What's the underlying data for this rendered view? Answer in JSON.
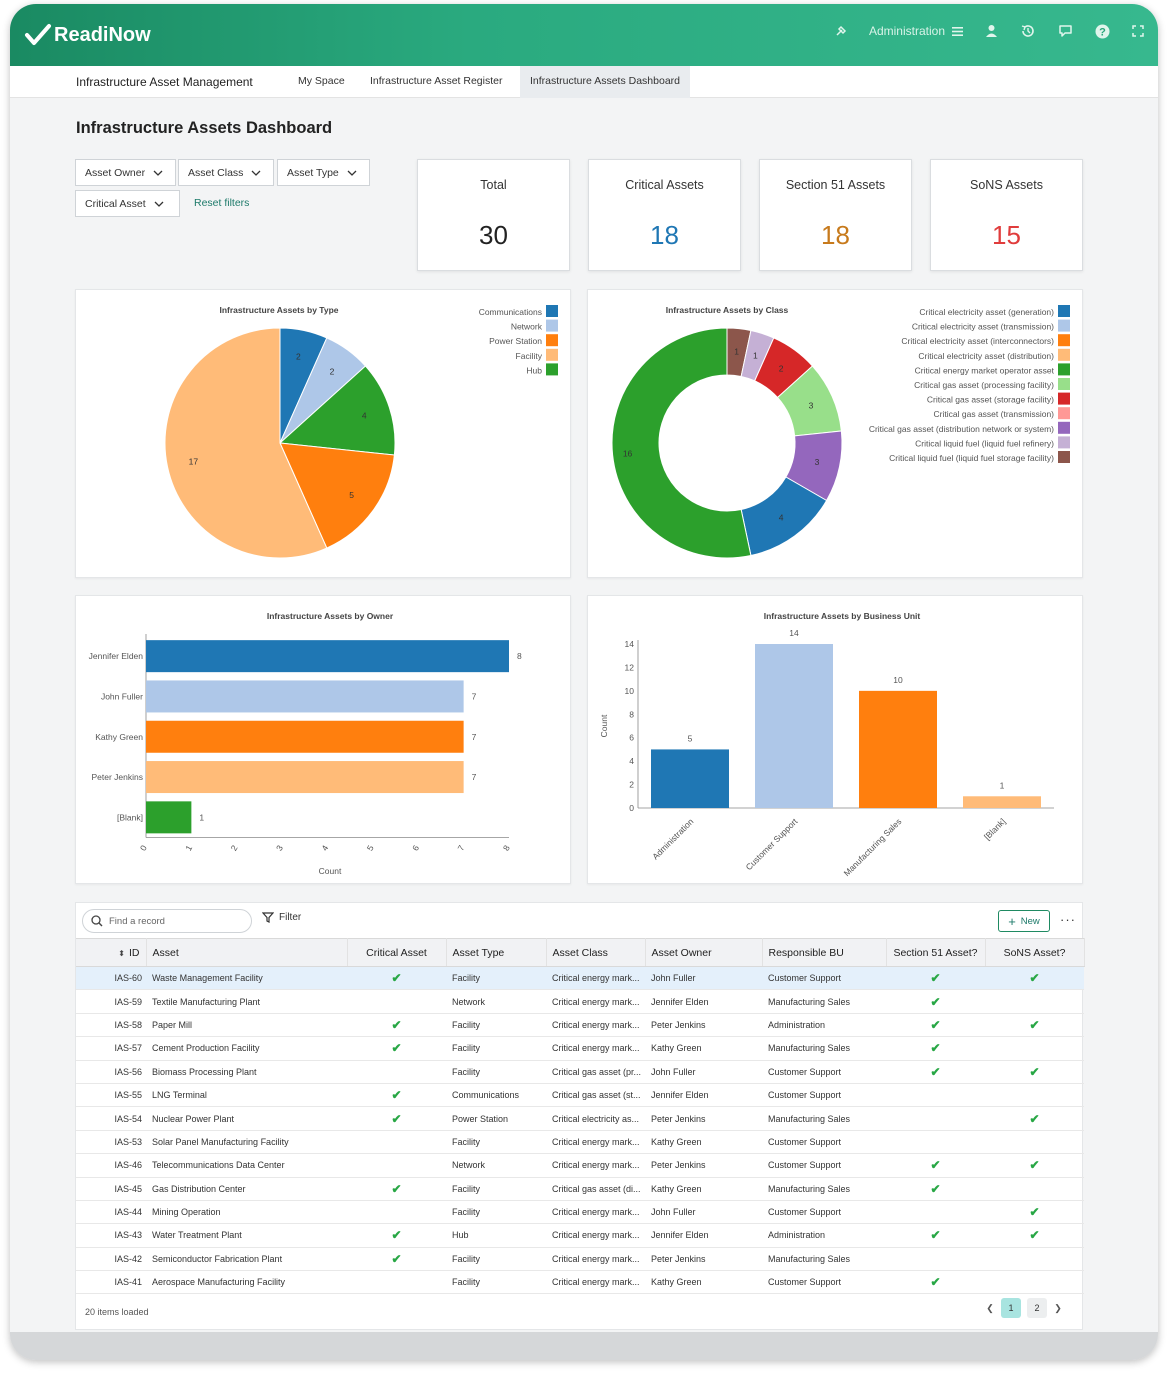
{
  "app": {
    "brand": "ReadiNow",
    "admin_label": "Administration"
  },
  "nav": {
    "app_name": "Infrastructure Asset Management",
    "tabs": [
      {
        "label": "My Space"
      },
      {
        "label": "Infrastructure Asset Register"
      },
      {
        "label": "Infrastructure Assets Dashboard",
        "active": true
      }
    ]
  },
  "page": {
    "title": "Infrastructure Assets Dashboard"
  },
  "filters": {
    "asset_owner": "Asset Owner",
    "asset_class": "Asset Class",
    "asset_type": "Asset Type",
    "critical_asset": "Critical Asset",
    "reset": "Reset filters"
  },
  "stats": [
    {
      "label": "Total",
      "value": "30",
      "color": "#222222"
    },
    {
      "label": "Critical Assets",
      "value": "18",
      "color": "#1f77b4"
    },
    {
      "label": "Section 51 Assets",
      "value": "18",
      "color": "#c77a1c"
    },
    {
      "label": "SoNS Assets",
      "value": "15",
      "color": "#e03c3c"
    }
  ],
  "chart_data": [
    {
      "type": "pie",
      "title": "Infrastructure Assets by Type",
      "categories": [
        "Communications",
        "Network",
        "Power Station",
        "Facility",
        "Hub"
      ],
      "values": [
        2,
        2,
        5,
        17,
        4
      ],
      "colors": [
        "#1f77b4",
        "#aec7e8",
        "#ff7f0e",
        "#ffbb78",
        "#2ca02c"
      ],
      "slice_order": [
        "Communications",
        "Network",
        "Hub",
        "Power Station",
        "Facility"
      ],
      "legend": "top-right"
    },
    {
      "type": "pie",
      "subtype": "donut",
      "title": "Infrastructure Assets by Class",
      "categories": [
        "Critical electricity asset (generation)",
        "Critical electricity asset (transmission)",
        "Critical electricity asset (interconnectors)",
        "Critical electricity asset (distribution)",
        "Critical energy market operator asset",
        "Critical gas asset (processing facility)",
        "Critical gas asset (storage facility)",
        "Critical gas asset (transmission)",
        "Critical gas asset (distribution network or system)",
        "Critical liquid fuel (liquid fuel refinery)",
        "Critical liquid fuel (liquid fuel storage facility)"
      ],
      "values": [
        4,
        0,
        0,
        0,
        16,
        3,
        2,
        0,
        3,
        1,
        1
      ],
      "colors": [
        "#1f77b4",
        "#aec7e8",
        "#ff7f0e",
        "#ffbb78",
        "#2ca02c",
        "#98df8a",
        "#d62728",
        "#ff9896",
        "#9467bd",
        "#c5b0d5",
        "#8c564b"
      ],
      "slice_order": [
        10,
        9,
        6,
        5,
        8,
        0,
        4
      ],
      "legend": "right"
    },
    {
      "type": "bar",
      "orientation": "horizontal",
      "title": "Infrastructure Assets by Owner",
      "categories": [
        "Jennifer Elden",
        "John Fuller",
        "Kathy Green",
        "Peter Jenkins",
        "[Blank]"
      ],
      "values": [
        8,
        7,
        7,
        7,
        1
      ],
      "colors": [
        "#1f77b4",
        "#aec7e8",
        "#ff7f0e",
        "#ffbb78",
        "#2ca02c"
      ],
      "xlabel": "Count",
      "xticks": [
        "0",
        "1",
        "2",
        "3",
        "4",
        "5",
        "6",
        "7",
        "8"
      ],
      "xlim": [
        0,
        8
      ]
    },
    {
      "type": "bar",
      "title": "Infrastructure Assets by Business Unit",
      "categories": [
        "Administration",
        "Customer Support",
        "Manufacturing Sales",
        "[Blank]"
      ],
      "values": [
        5,
        14,
        10,
        1
      ],
      "colors": [
        "#1f77b4",
        "#aec7e8",
        "#ff7f0e",
        "#ffbb78"
      ],
      "ylabel": "Count",
      "yticks": [
        "0",
        "2",
        "4",
        "6",
        "8",
        "10",
        "12",
        "14"
      ],
      "ylim": [
        0,
        14
      ]
    }
  ],
  "grid": {
    "search_placeholder": "Find a record",
    "filter_label": "Filter",
    "new_label": "New",
    "columns": [
      "ID",
      "Asset",
      "Critical Asset",
      "Asset Type",
      "Asset Class",
      "Asset Owner",
      "Responsible BU",
      "Section 51 Asset?",
      "SoNS Asset?"
    ],
    "rows": [
      {
        "id": "IAS-60",
        "asset": "Waste Management Facility",
        "critical": true,
        "type": "Facility",
        "class": "Critical energy mark...",
        "owner": "John Fuller",
        "bu": "Customer Support",
        "s51": true,
        "sons": true
      },
      {
        "id": "IAS-59",
        "asset": "Textile Manufacturing Plant",
        "critical": false,
        "type": "Network",
        "class": "Critical energy mark...",
        "owner": "Jennifer Elden",
        "bu": "Manufacturing Sales",
        "s51": true,
        "sons": false
      },
      {
        "id": "IAS-58",
        "asset": "Paper Mill",
        "critical": true,
        "type": "Facility",
        "class": "Critical energy mark...",
        "owner": "Peter Jenkins",
        "bu": "Administration",
        "s51": true,
        "sons": true
      },
      {
        "id": "IAS-57",
        "asset": "Cement Production Facility",
        "critical": true,
        "type": "Facility",
        "class": "Critical energy mark...",
        "owner": "Kathy Green",
        "bu": "Manufacturing Sales",
        "s51": true,
        "sons": false
      },
      {
        "id": "IAS-56",
        "asset": "Biomass Processing Plant",
        "critical": false,
        "type": "Facility",
        "class": "Critical gas asset (pr...",
        "owner": "John Fuller",
        "bu": "Customer Support",
        "s51": true,
        "sons": true
      },
      {
        "id": "IAS-55",
        "asset": "LNG Terminal",
        "critical": true,
        "type": "Communications",
        "class": "Critical gas asset (st...",
        "owner": "Jennifer Elden",
        "bu": "Customer Support",
        "s51": false,
        "sons": false
      },
      {
        "id": "IAS-54",
        "asset": "Nuclear Power Plant",
        "critical": true,
        "type": "Power Station",
        "class": "Critical electricity as...",
        "owner": "Peter Jenkins",
        "bu": "Manufacturing Sales",
        "s51": false,
        "sons": true
      },
      {
        "id": "IAS-53",
        "asset": "Solar Panel Manufacturing Facility",
        "critical": false,
        "type": "Facility",
        "class": "Critical energy mark...",
        "owner": "Kathy Green",
        "bu": "Customer Support",
        "s51": false,
        "sons": false
      },
      {
        "id": "IAS-46",
        "asset": "Telecommunications Data Center",
        "critical": false,
        "type": "Network",
        "class": "Critical energy mark...",
        "owner": "Peter Jenkins",
        "bu": "Customer Support",
        "s51": true,
        "sons": true
      },
      {
        "id": "IAS-45",
        "asset": "Gas Distribution Center",
        "critical": true,
        "type": "Facility",
        "class": "Critical gas asset (di...",
        "owner": "Kathy Green",
        "bu": "Manufacturing Sales",
        "s51": true,
        "sons": false
      },
      {
        "id": "IAS-44",
        "asset": "Mining Operation",
        "critical": false,
        "type": "Facility",
        "class": "Critical energy mark...",
        "owner": "John Fuller",
        "bu": "Customer Support",
        "s51": false,
        "sons": true
      },
      {
        "id": "IAS-43",
        "asset": "Water Treatment Plant",
        "critical": true,
        "type": "Hub",
        "class": "Critical energy mark...",
        "owner": "Jennifer Elden",
        "bu": "Administration",
        "s51": true,
        "sons": true
      },
      {
        "id": "IAS-42",
        "asset": "Semiconductor Fabrication Plant",
        "critical": true,
        "type": "Facility",
        "class": "Critical energy mark...",
        "owner": "Peter Jenkins",
        "bu": "Manufacturing Sales",
        "s51": false,
        "sons": false
      },
      {
        "id": "IAS-41",
        "asset": "Aerospace Manufacturing Facility",
        "critical": false,
        "type": "Facility",
        "class": "Critical energy mark...",
        "owner": "Kathy Green",
        "bu": "Customer Support",
        "s51": true,
        "sons": false
      }
    ],
    "footer": "20 items loaded",
    "pages": [
      "1",
      "2"
    ],
    "current_page": "1"
  }
}
